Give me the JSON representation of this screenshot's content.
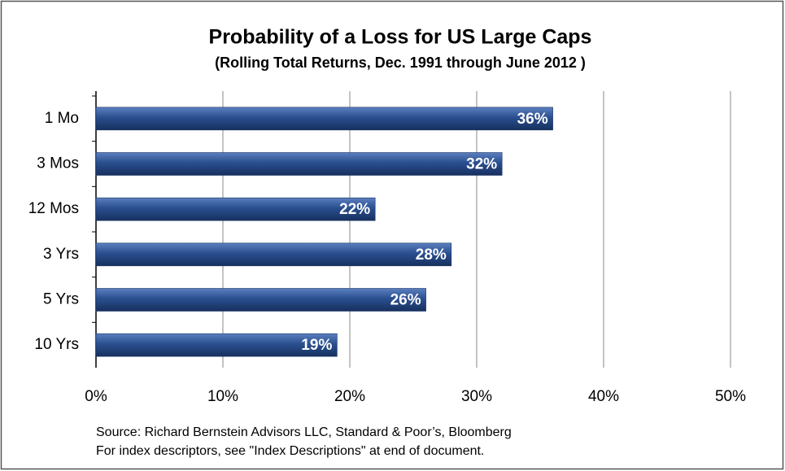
{
  "chart_data": {
    "type": "bar",
    "orientation": "horizontal",
    "title": "Probability of a Loss for US Large Caps",
    "subtitle": "(Rolling Total Returns, Dec. 1991 through June 2012 )",
    "categories": [
      "1 Mo",
      "3 Mos",
      "12 Mos",
      "3 Yrs",
      "5 Yrs",
      "10 Yrs"
    ],
    "values": [
      36,
      32,
      22,
      28,
      26,
      19
    ],
    "value_labels": [
      "36%",
      "32%",
      "22%",
      "28%",
      "26%",
      "19%"
    ],
    "color": "#2a4f8f",
    "xlim": [
      0,
      50
    ],
    "xticks": [
      {
        "value": 0,
        "label": "0%"
      },
      {
        "value": 10,
        "label": "10%"
      },
      {
        "value": 20,
        "label": "20%"
      },
      {
        "value": 30,
        "label": "30%"
      },
      {
        "value": 40,
        "label": "40%"
      },
      {
        "value": 50,
        "label": "50%"
      }
    ],
    "grid": true,
    "notes": [
      "Source: Richard Bernstein Advisors LLC, Standard & Poor’s, Bloomberg",
      "For index descriptors, see \"Index Descriptions\" at end of document."
    ]
  }
}
